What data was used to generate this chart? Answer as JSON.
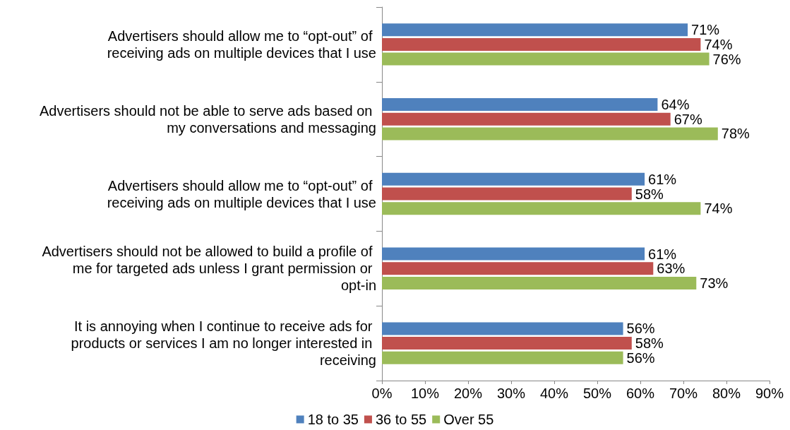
{
  "chart_data": {
    "type": "bar",
    "orientation": "horizontal",
    "categories": [
      "Advertisers should allow me to “opt-out” of receiving ads on multiple devices that I use",
      "Advertisers should not be able to serve ads based on my conversations and messaging",
      "Advertisers should allow me to “opt-out” of receiving ads on multiple devices that I use",
      "Advertisers should not be allowed to build a profile of me for targeted ads unless I grant permission or opt-in",
      "It is annoying when I continue to receive ads for products or services I am no longer interested in receiving"
    ],
    "series": [
      {
        "name": "18 to 35",
        "color": "#4f81bd",
        "values": [
          71,
          64,
          61,
          61,
          56
        ],
        "value_labels": [
          "71%",
          "64%",
          "61%",
          "61%",
          "56%"
        ]
      },
      {
        "name": "36 to 55",
        "color": "#c0504d",
        "values": [
          74,
          67,
          58,
          63,
          58
        ],
        "value_labels": [
          "74%",
          "67%",
          "58%",
          "63%",
          "58%"
        ]
      },
      {
        "name": "Over 55",
        "color": "#9bbb59",
        "values": [
          76,
          78,
          74,
          73,
          56
        ],
        "value_labels": [
          "76%",
          "78%",
          "74%",
          "73%",
          "56%"
        ]
      }
    ],
    "xlim": [
      0,
      90
    ],
    "xticks": [
      {
        "value": 0,
        "label": "0%"
      },
      {
        "value": 10,
        "label": "10%"
      },
      {
        "value": 20,
        "label": "20%"
      },
      {
        "value": 30,
        "label": "30%"
      },
      {
        "value": 40,
        "label": "40%"
      },
      {
        "value": 50,
        "label": "50%"
      },
      {
        "value": 60,
        "label": "60%"
      },
      {
        "value": 70,
        "label": "70%"
      },
      {
        "value": 80,
        "label": "80%"
      },
      {
        "value": 90,
        "label": "90%"
      }
    ],
    "grid": false,
    "legend": "bottom"
  }
}
